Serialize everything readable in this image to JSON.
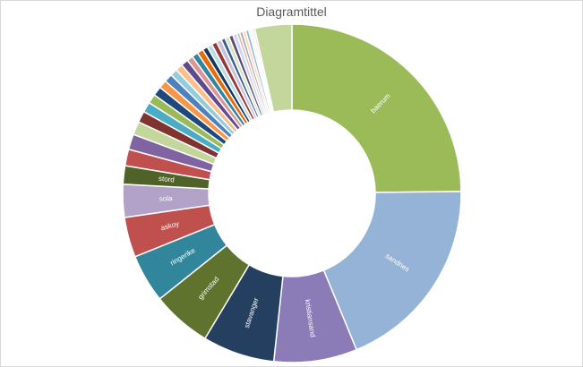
{
  "chart_data": {
    "type": "pie",
    "variant": "doughnut",
    "title": "Diagramtittel",
    "slices": [
      {
        "label": "baerum",
        "value": 25.3,
        "color": "#9bbb59",
        "show_label": true
      },
      {
        "label": "sandnes",
        "value": 19.3,
        "color": "#95b3d7",
        "show_label": true
      },
      {
        "label": "kristiansand",
        "value": 8.1,
        "color": "#8b7bb6",
        "show_label": true
      },
      {
        "label": "stavanger",
        "value": 7.0,
        "color": "#243f60",
        "show_label": true
      },
      {
        "label": "grimstad",
        "value": 5.8,
        "color": "#5f732e",
        "show_label": true
      },
      {
        "label": "ringerike",
        "value": 4.7,
        "color": "#31869b",
        "show_label": true
      },
      {
        "label": "askoy",
        "value": 3.9,
        "color": "#c0504d",
        "show_label": true
      },
      {
        "label": "sola",
        "value": 3.2,
        "color": "#b3a2c7",
        "show_label": true
      },
      {
        "label": "stord",
        "value": 1.8,
        "color": "#4f6228",
        "show_label": true
      },
      {
        "label": "",
        "value": 1.6,
        "color": "#c0504d",
        "show_label": false
      },
      {
        "label": "",
        "value": 1.5,
        "color": "#8064a2",
        "show_label": false
      },
      {
        "label": "",
        "value": 1.3,
        "color": "#c3d69b",
        "show_label": false
      },
      {
        "label": "",
        "value": 1.1,
        "color": "#7f3430",
        "show_label": false
      },
      {
        "label": "",
        "value": 1.0,
        "color": "#4bacc6",
        "show_label": false
      },
      {
        "label": "",
        "value": 0.9,
        "color": "#9bbb59",
        "show_label": false
      },
      {
        "label": "",
        "value": 0.9,
        "color": "#1f497d",
        "show_label": false
      },
      {
        "label": "",
        "value": 0.8,
        "color": "#f79646",
        "show_label": false
      },
      {
        "label": "",
        "value": 0.8,
        "color": "#4f81bd",
        "show_label": false
      },
      {
        "label": "",
        "value": 0.7,
        "color": "#93cddd",
        "show_label": false
      },
      {
        "label": "",
        "value": 0.7,
        "color": "#fabf8f",
        "show_label": false
      },
      {
        "label": "",
        "value": 0.7,
        "color": "#5f4b8b",
        "show_label": false
      },
      {
        "label": "",
        "value": 0.6,
        "color": "#d99694",
        "show_label": false
      },
      {
        "label": "",
        "value": 0.6,
        "color": "#31859c",
        "show_label": false
      },
      {
        "label": "",
        "value": 0.6,
        "color": "#e46c0a",
        "show_label": false
      },
      {
        "label": "",
        "value": 0.5,
        "color": "#17375e",
        "show_label": false
      },
      {
        "label": "",
        "value": 0.5,
        "color": "#b7dee8",
        "show_label": false
      },
      {
        "label": "",
        "value": 0.5,
        "color": "#953735",
        "show_label": false
      },
      {
        "label": "",
        "value": 0.5,
        "color": "#ccc1da",
        "show_label": false
      },
      {
        "label": "",
        "value": 0.4,
        "color": "#376092",
        "show_label": false
      },
      {
        "label": "",
        "value": 0.4,
        "color": "#d7e4bd",
        "show_label": false
      },
      {
        "label": "",
        "value": 0.4,
        "color": "#604a7b",
        "show_label": false
      },
      {
        "label": "",
        "value": 0.4,
        "color": "#c6d9f1",
        "show_label": false
      },
      {
        "label": "",
        "value": 0.3,
        "color": "#e6b9b8",
        "show_label": false
      },
      {
        "label": "",
        "value": 0.3,
        "color": "#a6a6a6",
        "show_label": false
      },
      {
        "label": "",
        "value": 0.3,
        "color": "#fcd5b5",
        "show_label": false
      },
      {
        "label": "",
        "value": 0.3,
        "color": "#8eb4e3",
        "show_label": false
      },
      {
        "label": "",
        "value": 0.2,
        "color": "#dbeef4",
        "show_label": false
      },
      {
        "label": "",
        "value": 0.2,
        "color": "#ebf1de",
        "show_label": false
      },
      {
        "label": "",
        "value": 0.2,
        "color": "#f2dcdb",
        "show_label": false
      },
      {
        "label": "",
        "value": 3.6,
        "color": "#c3d69b",
        "show_label": false
      }
    ]
  }
}
